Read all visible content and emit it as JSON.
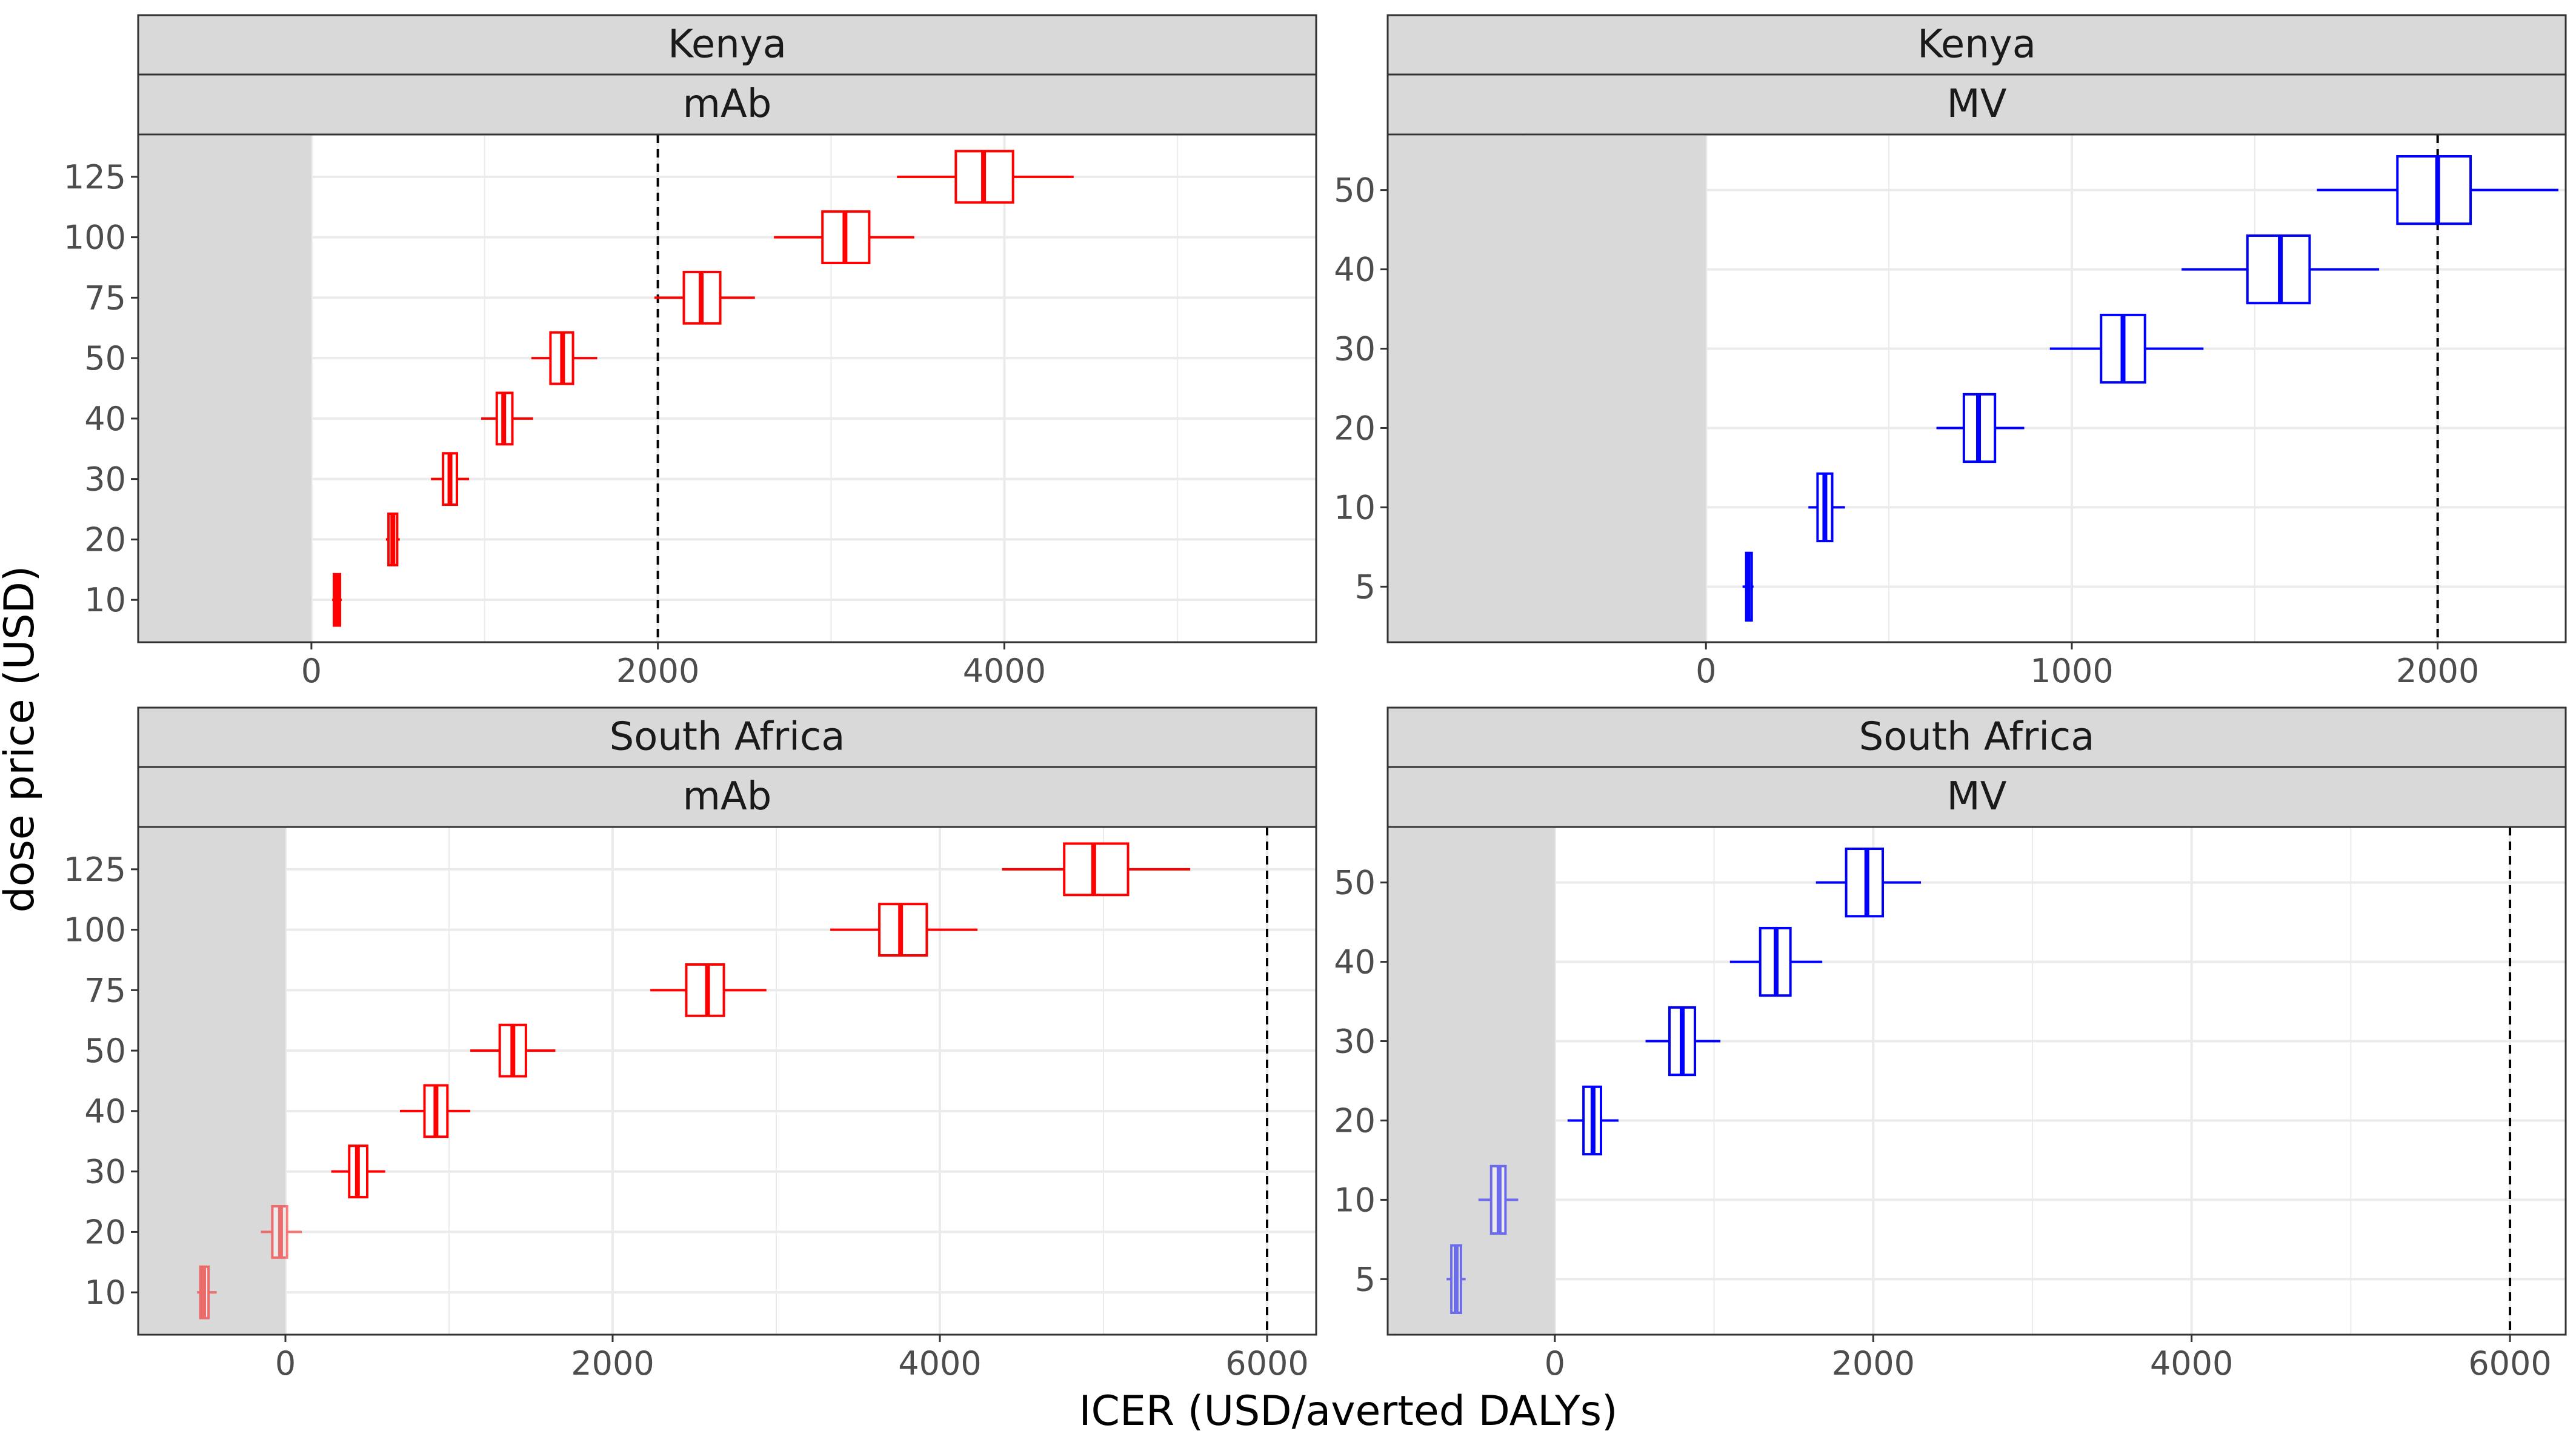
{
  "chart_data": {
    "type": "boxplot",
    "xlabel": "ICER (USD/averted DALYs)",
    "ylabel": "dose price (USD)",
    "colors": {
      "mAb": "#ff0000",
      "MV": "#0000ff",
      "shade": "#d9d9d9",
      "strip_bg": "#d9d9d9",
      "grid": "#ebebeb"
    },
    "panels": [
      {
        "country": "Kenya",
        "product": "mAb",
        "xlim": [
          -1000,
          5800
        ],
        "xticks": [
          "0",
          "2000",
          "4000"
        ],
        "xtick_values": [
          0,
          2000,
          4000
        ],
        "y_categories": [
          "10",
          "20",
          "30",
          "40",
          "50",
          "75",
          "100",
          "125"
        ],
        "threshold": 2000,
        "shade_range": [
          -1000,
          0
        ],
        "boxes": [
          {
            "price": "10",
            "min": 120,
            "q1": 130,
            "median": 150,
            "q3": 165,
            "max": 175
          },
          {
            "price": "20",
            "min": 430,
            "q1": 445,
            "median": 470,
            "q3": 495,
            "max": 510
          },
          {
            "price": "30",
            "min": 690,
            "q1": 760,
            "median": 800,
            "q3": 840,
            "max": 910
          },
          {
            "price": "40",
            "min": 980,
            "q1": 1070,
            "median": 1110,
            "q3": 1160,
            "max": 1280
          },
          {
            "price": "50",
            "min": 1270,
            "q1": 1380,
            "median": 1450,
            "q3": 1510,
            "max": 1650
          },
          {
            "price": "75",
            "min": 1980,
            "q1": 2150,
            "median": 2250,
            "q3": 2360,
            "max": 2560
          },
          {
            "price": "100",
            "min": 2670,
            "q1": 2950,
            "median": 3080,
            "q3": 3220,
            "max": 3480
          },
          {
            "price": "125",
            "min": 3380,
            "q1": 3720,
            "median": 3880,
            "q3": 4050,
            "max": 4400
          }
        ]
      },
      {
        "country": "Kenya",
        "product": "MV",
        "xlim": [
          -870,
          2350
        ],
        "xticks": [
          "0",
          "1000",
          "2000"
        ],
        "xtick_values": [
          0,
          1000,
          2000
        ],
        "y_categories": [
          "5",
          "10",
          "20",
          "30",
          "40",
          "50"
        ],
        "threshold": 2000,
        "shade_range": [
          -870,
          0
        ],
        "boxes": [
          {
            "price": "5",
            "min": 100,
            "q1": 110,
            "median": 115,
            "q3": 125,
            "max": 130
          },
          {
            "price": "10",
            "min": 280,
            "q1": 305,
            "median": 325,
            "q3": 345,
            "max": 380
          },
          {
            "price": "20",
            "min": 630,
            "q1": 705,
            "median": 745,
            "q3": 790,
            "max": 870
          },
          {
            "price": "30",
            "min": 940,
            "q1": 1080,
            "median": 1140,
            "q3": 1200,
            "max": 1360
          },
          {
            "price": "40",
            "min": 1300,
            "q1": 1480,
            "median": 1570,
            "q3": 1650,
            "max": 1840
          },
          {
            "price": "50",
            "min": 1670,
            "q1": 1890,
            "median": 2000,
            "q3": 2090,
            "max": 2330
          }
        ]
      },
      {
        "country": "South Africa",
        "product": "mAb",
        "xlim": [
          -900,
          6300
        ],
        "xticks": [
          "0",
          "2000",
          "4000",
          "6000"
        ],
        "xtick_values": [
          0,
          2000,
          4000,
          6000
        ],
        "y_categories": [
          "10",
          "20",
          "30",
          "40",
          "50",
          "75",
          "100",
          "125"
        ],
        "threshold": 6000,
        "shade_range": [
          -900,
          0
        ],
        "boxes": [
          {
            "price": "10",
            "min": -540,
            "q1": -520,
            "median": -500,
            "q3": -470,
            "max": -420,
            "faded": true
          },
          {
            "price": "20",
            "min": -150,
            "q1": -80,
            "median": -30,
            "q3": 10,
            "max": 100,
            "faded": true
          },
          {
            "price": "30",
            "min": 280,
            "q1": 390,
            "median": 440,
            "q3": 500,
            "max": 610
          },
          {
            "price": "40",
            "min": 700,
            "q1": 850,
            "median": 920,
            "q3": 990,
            "max": 1130
          },
          {
            "price": "50",
            "min": 1130,
            "q1": 1310,
            "median": 1390,
            "q3": 1470,
            "max": 1650
          },
          {
            "price": "75",
            "min": 2230,
            "q1": 2450,
            "median": 2580,
            "q3": 2680,
            "max": 2940
          },
          {
            "price": "100",
            "min": 3330,
            "q1": 3630,
            "median": 3760,
            "q3": 3920,
            "max": 4230
          },
          {
            "price": "125",
            "min": 4380,
            "q1": 4760,
            "median": 4940,
            "q3": 5150,
            "max": 5530
          }
        ]
      },
      {
        "country": "South Africa",
        "product": "MV",
        "xlim": [
          -1050,
          6350
        ],
        "xticks": [
          "0",
          "2000",
          "4000",
          "6000"
        ],
        "xtick_values": [
          0,
          2000,
          4000,
          6000
        ],
        "y_categories": [
          "5",
          "10",
          "20",
          "30",
          "40",
          "50"
        ],
        "threshold": 6000,
        "shade_range": [
          -1050,
          0
        ],
        "boxes": [
          {
            "price": "5",
            "min": -680,
            "q1": -650,
            "median": -620,
            "q3": -590,
            "max": -560,
            "faded": true
          },
          {
            "price": "10",
            "min": -480,
            "q1": -400,
            "median": -350,
            "q3": -310,
            "max": -230,
            "faded": true
          },
          {
            "price": "20",
            "min": 80,
            "q1": 180,
            "median": 240,
            "q3": 290,
            "max": 400
          },
          {
            "price": "30",
            "min": 570,
            "q1": 720,
            "median": 800,
            "q3": 880,
            "max": 1040
          },
          {
            "price": "40",
            "min": 1100,
            "q1": 1290,
            "median": 1390,
            "q3": 1480,
            "max": 1680
          },
          {
            "price": "50",
            "min": 1640,
            "q1": 1830,
            "median": 1960,
            "q3": 2060,
            "max": 2300
          }
        ]
      }
    ]
  }
}
